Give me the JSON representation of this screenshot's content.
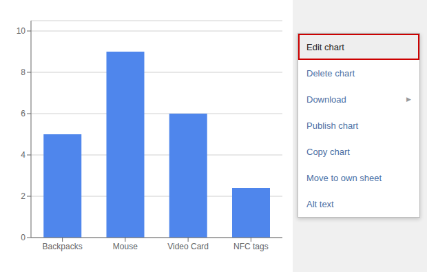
{
  "chart_data": {
    "type": "bar",
    "categories": [
      "Backpacks",
      "Mouse",
      "Video Card",
      "NFC tags"
    ],
    "values": [
      5,
      9,
      6,
      2.4
    ],
    "color": "#4f86ec",
    "ylim": [
      0,
      10.5
    ],
    "yticks": [
      0,
      2,
      4,
      6,
      8,
      10
    ],
    "grid": true,
    "annotations": [
      [
        "Edit chart"
      ],
      [
        "Delete chart"
      ],
      [
        "Download",
        "▶"
      ],
      [
        "Publish chart"
      ],
      [
        "Copy chart"
      ],
      [
        "Move to own sheet"
      ],
      [
        "Alt text"
      ]
    ]
  }
}
